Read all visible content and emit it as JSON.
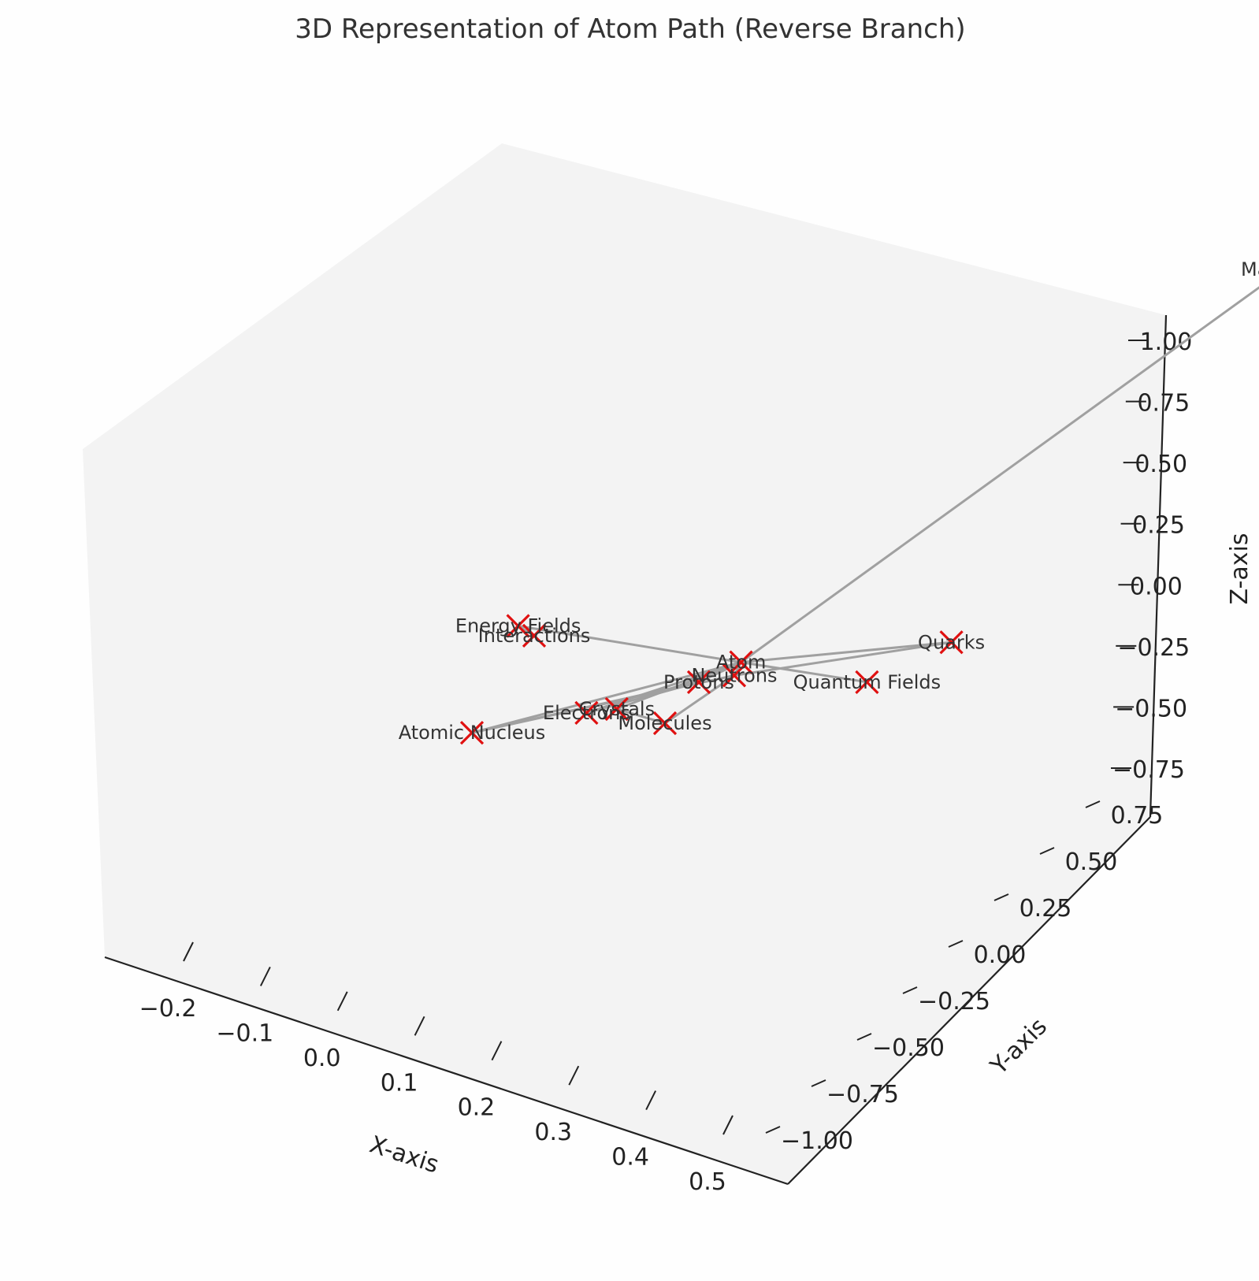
{
  "chart_data": {
    "type": "scatter",
    "title": "3D Representation of Atom Path (Reverse Branch)",
    "xlabel": "X-axis",
    "ylabel": "Y-axis",
    "zlabel": "Z-axis",
    "xlim": [
      -0.25,
      0.5
    ],
    "ylim": [
      -1.0,
      0.8
    ],
    "zlim": [
      -0.8,
      1.1
    ],
    "xticks": [
      "−0.2",
      "−0.1",
      "0.0",
      "0.1",
      "0.2",
      "0.3",
      "0.4",
      "0.5"
    ],
    "yticks": [
      "−1.00",
      "−0.75",
      "−0.50",
      "−0.25",
      "0.00",
      "0.25",
      "0.50",
      "0.75"
    ],
    "zticks": [
      "−0.75",
      "−0.50",
      "−0.25",
      "0.00",
      "0.25",
      "0.50",
      "0.75",
      "1.00"
    ],
    "marker": "x",
    "marker_color": "#e01010",
    "line_color": "#a0a0a0",
    "points": [
      {
        "label": "Atom",
        "x": 0.17,
        "y": 0.0,
        "z": 0.0
      },
      {
        "label": "Protons",
        "x": 0.15,
        "y": 0.1,
        "z": 0.0
      },
      {
        "label": "Electrons",
        "x": 0.08,
        "y": 0.3,
        "z": 0.0
      },
      {
        "label": "Atomic Nucleus",
        "x": 0.0,
        "y": 0.47,
        "z": 0.0
      },
      {
        "label": "Quantum Fields",
        "x": 0.28,
        "y": -0.1,
        "z": -0.05
      },
      {
        "label": "Quarks",
        "x": 0.32,
        "y": -0.3,
        "z": -0.05
      },
      {
        "label": "Neutrons",
        "x": 0.15,
        "y": -0.05,
        "z": -0.13
      },
      {
        "label": "Molecules",
        "x": 0.05,
        "y": -0.15,
        "z": -0.55
      },
      {
        "label": "Crystals",
        "x": -0.04,
        "y": -0.3,
        "z": -0.76
      },
      {
        "label": "Energy Fields",
        "x": 0.07,
        "y": 0.55,
        "z": 0.6
      },
      {
        "label": "Interactions",
        "x": 0.1,
        "y": 0.6,
        "z": 0.65
      },
      {
        "label": "Materials",
        "x": 0.5,
        "y": -1.0,
        "z": 0.94
      }
    ],
    "edges": [
      [
        "Atom",
        "Protons"
      ],
      [
        "Atom",
        "Electrons"
      ],
      [
        "Atom",
        "Atomic Nucleus"
      ],
      [
        "Atom",
        "Quantum Fields"
      ],
      [
        "Atom",
        "Quarks"
      ],
      [
        "Atom",
        "Neutrons"
      ],
      [
        "Atom",
        "Energy Fields"
      ],
      [
        "Atom",
        "Materials"
      ],
      [
        "Atom",
        "Crystals"
      ],
      [
        "Atomic Nucleus",
        "Protons"
      ],
      [
        "Atomic Nucleus",
        "Neutrons"
      ],
      [
        "Electrons",
        "Protons"
      ],
      [
        "Neutrons",
        "Quarks"
      ],
      [
        "Neutrons",
        "Molecules"
      ],
      [
        "Molecules",
        "Crystals"
      ],
      [
        "Energy Fields",
        "Interactions"
      ]
    ]
  }
}
